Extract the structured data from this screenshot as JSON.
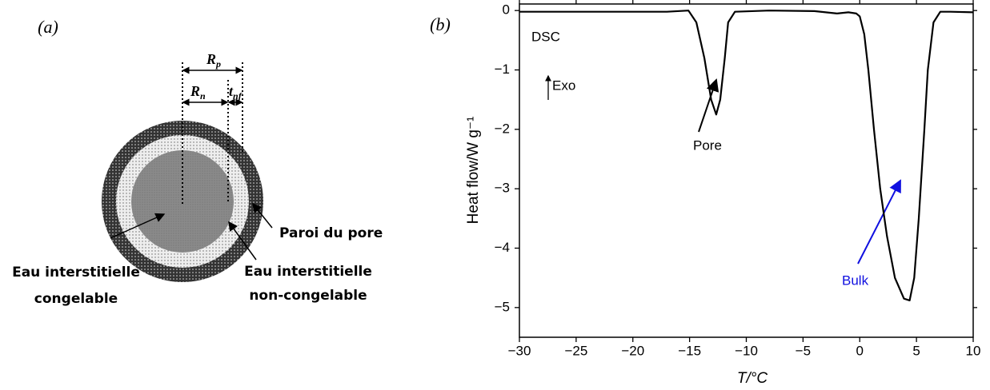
{
  "panel_labels": [
    "(a)",
    "(b)"
  ],
  "diagram": {
    "rp": {
      "symbol": "R",
      "subscript": "p"
    },
    "rn": {
      "symbol": "R",
      "subscript": "n"
    },
    "tnf": {
      "symbol": "t",
      "subscript": "nf"
    },
    "wall_label": "Paroi du pore",
    "freezable_label": [
      "Eau interstitielle",
      "congelable"
    ],
    "non_freezable_label": [
      "Eau interstitielle",
      "non-congelable"
    ]
  },
  "chart_data": {
    "type": "line",
    "xlabel": "T/°C",
    "ylabel": "Heat flow/W g⁻¹",
    "annotations": [
      "DSC",
      "Exo",
      "Pore",
      "Bulk"
    ],
    "color": "#000000",
    "x": [
      -30,
      -25,
      -20,
      -17,
      -15.1,
      -14.4,
      -13.7,
      -13.1,
      -12.65,
      -12.3,
      -11.9,
      -11.6,
      -11,
      -8,
      -4,
      -2,
      -1,
      -0.3,
      0,
      0.4,
      0.76,
      1.25,
      1.8,
      2.4,
      3.1,
      3.9,
      4.4,
      4.8,
      5.2,
      5.7,
      6,
      6.5,
      7.1,
      8,
      10
    ],
    "values": [
      -0.02,
      -0.02,
      -0.02,
      -0.02,
      0,
      -0.2,
      -0.8,
      -1.5,
      -1.75,
      -1.5,
      -0.8,
      -0.2,
      -0.02,
      0,
      -0.01,
      -0.05,
      -0.03,
      -0.05,
      -0.1,
      -0.4,
      -1,
      -2,
      -3,
      -3.8,
      -4.5,
      -4.85,
      -4.88,
      -4.5,
      -3.5,
      -2,
      -1,
      -0.2,
      -0.02,
      -0.02,
      -0.03
    ],
    "xlim": [
      -30,
      10
    ],
    "ylim": [
      -5.5,
      0.11
    ],
    "xticks": [
      {
        "value": -30,
        "label": "−30"
      },
      {
        "value": -25,
        "label": "−25"
      },
      {
        "value": -20,
        "label": "−20"
      },
      {
        "value": -15,
        "label": "−15"
      },
      {
        "value": -10,
        "label": "−10"
      },
      {
        "value": -5,
        "label": "−5"
      },
      0,
      5,
      10
    ],
    "yticks": [
      0,
      {
        "value": -1,
        "label": "−1"
      },
      {
        "value": -2,
        "label": "−2"
      },
      {
        "value": -3,
        "label": "−3"
      },
      {
        "value": -4,
        "label": "−4"
      },
      {
        "value": -5,
        "label": "−5"
      }
    ]
  }
}
